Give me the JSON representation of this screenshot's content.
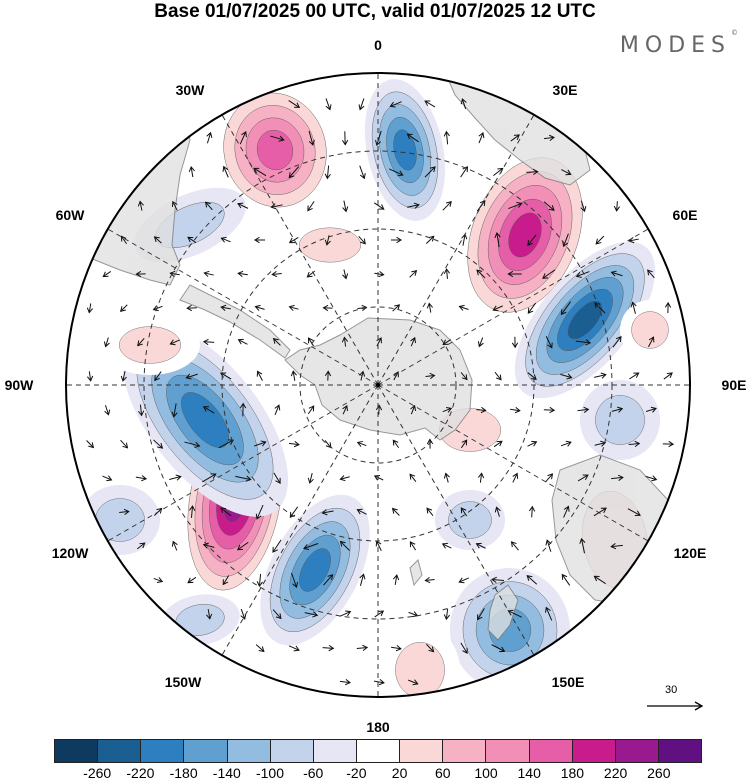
{
  "header": {
    "title": "Base 01/07/2025 00 UTC, valid 01/07/2025 12 UTC",
    "brand": "MODES",
    "brand_mark": "©"
  },
  "map": {
    "projection": "south polar stereographic",
    "center": "South Pole",
    "longitude_labels": [
      "0",
      "30E",
      "60E",
      "90E",
      "120E",
      "150E",
      "180",
      "150W",
      "120W",
      "90W",
      "60W",
      "30W"
    ],
    "vector_reference_label": "30",
    "colors": {
      "land": "#e0e0e0",
      "coast": "#7a7a7a",
      "grid": "#333333",
      "vector": "#111111"
    },
    "anomaly_fields": [
      {
        "name": "ridge-near-0",
        "sign": "negative",
        "level": -160
      },
      {
        "name": "ridge-30w",
        "sign": "positive",
        "level": 160
      },
      {
        "name": "trough-45e",
        "sign": "positive",
        "level": 220
      },
      {
        "name": "trough-70e",
        "sign": "negative",
        "level": -200
      },
      {
        "name": "low-120w",
        "sign": "positive",
        "level": 260
      },
      {
        "name": "low-100w",
        "sign": "negative",
        "level": -160
      },
      {
        "name": "low-150w",
        "sign": "negative",
        "level": -180
      },
      {
        "name": "high-150e",
        "sign": "negative",
        "level": -140
      },
      {
        "name": "high-120e",
        "sign": "positive",
        "level": 60
      }
    ]
  },
  "colorbar": {
    "colors": [
      "#0f3a5f",
      "#1b5e92",
      "#2d7fbf",
      "#5fa0d0",
      "#92bde0",
      "#c3d3eb",
      "#e6e6f4",
      "#ffffff",
      "#fad8d8",
      "#f6b2c4",
      "#f18fb7",
      "#e65ea8",
      "#c91c8c",
      "#981a8e",
      "#601081"
    ],
    "tick_labels": [
      "-260",
      "-220",
      "-180",
      "-140",
      "-100",
      "-60",
      "-20",
      "20",
      "60",
      "100",
      "140",
      "180",
      "220",
      "260"
    ]
  }
}
